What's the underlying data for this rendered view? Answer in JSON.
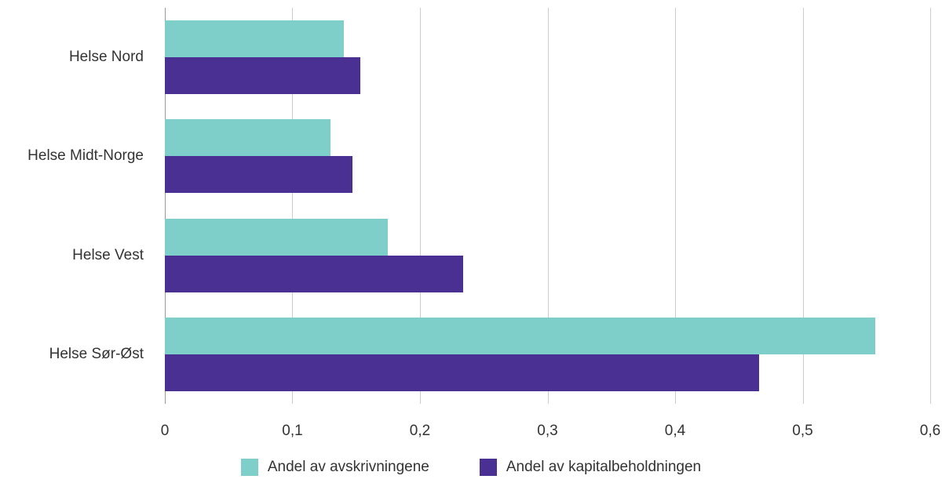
{
  "chart_data": {
    "type": "bar",
    "orientation": "horizontal",
    "title": "",
    "xlabel": "",
    "ylabel": "",
    "categories": [
      "Helse Nord",
      "Helse Midt-Norge",
      "Helse Vest",
      "Helse Sør-Øst"
    ],
    "series": [
      {
        "name": "Andel av avskrivningene",
        "color": "#7ECEC9",
        "values": [
          0.14,
          0.13,
          0.175,
          0.557
        ]
      },
      {
        "name": "Andel av kapitalbeholdningen",
        "color": "#4A3092",
        "values": [
          0.153,
          0.147,
          0.234,
          0.466
        ]
      }
    ],
    "xlim": [
      0,
      0.6
    ],
    "x_ticks": [
      0,
      0.1,
      0.2,
      0.3,
      0.4,
      0.5,
      0.6
    ],
    "x_tick_labels": [
      "0",
      "0,1",
      "0,2",
      "0,3",
      "0,4",
      "0,5",
      "0,6"
    ],
    "grid": "vertical",
    "legend_position": "bottom"
  }
}
